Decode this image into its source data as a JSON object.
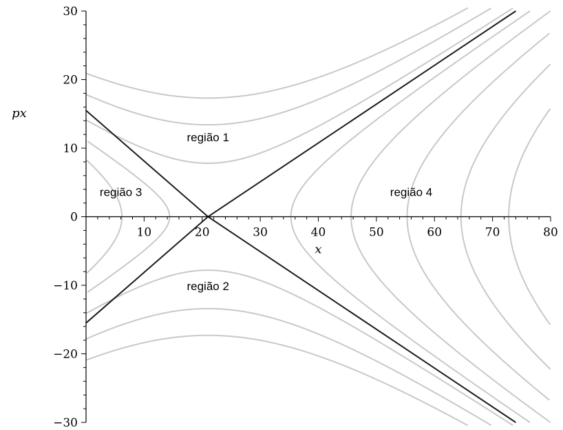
{
  "chart_data": {
    "type": "line",
    "title": "",
    "xlabel": "x",
    "ylabel": "px",
    "xlim": [
      0,
      80
    ],
    "ylim": [
      -30,
      30
    ],
    "x_ticks": [
      10,
      20,
      30,
      40,
      50,
      60,
      70,
      80
    ],
    "y_ticks": [
      -30,
      -20,
      -10,
      0,
      10,
      20,
      30
    ],
    "x_tick_labels": [
      "10",
      "20",
      "30",
      "40",
      "50",
      "60",
      "70",
      "80"
    ],
    "y_tick_labels": [
      "−30",
      "−20",
      "−10",
      "0",
      "10",
      "20",
      "30"
    ],
    "grid": false,
    "saddle_point": [
      21,
      0
    ],
    "separatrix_slope": 0.56,
    "separatrices": [
      {
        "x": [
          0,
          21,
          74
        ],
        "y": [
          15.5,
          0,
          -30
        ],
        "color": "#1a1a1a"
      },
      {
        "x": [
          0,
          21,
          74
        ],
        "y": [
          -15.5,
          0,
          30
        ],
        "color": "#1a1a1a"
      }
    ],
    "curve_families": {
      "top_bottom_levels": [
        7.8,
        13.4,
        17.3
      ],
      "left_levels": [
        3.7,
        8.3,
        12.1
      ],
      "right_levels": [
        8.0,
        13.8,
        19.2,
        24.4,
        29.0
      ],
      "curve_color": "#c8c8c8"
    },
    "annotations": [
      {
        "text": "região 1",
        "x": 21,
        "y": 11
      },
      {
        "text": "região 2",
        "x": 21,
        "y": -10.7
      },
      {
        "text": "região 3",
        "x": 6,
        "y": 3
      },
      {
        "text": "região 4",
        "x": 56,
        "y": 3
      }
    ]
  }
}
